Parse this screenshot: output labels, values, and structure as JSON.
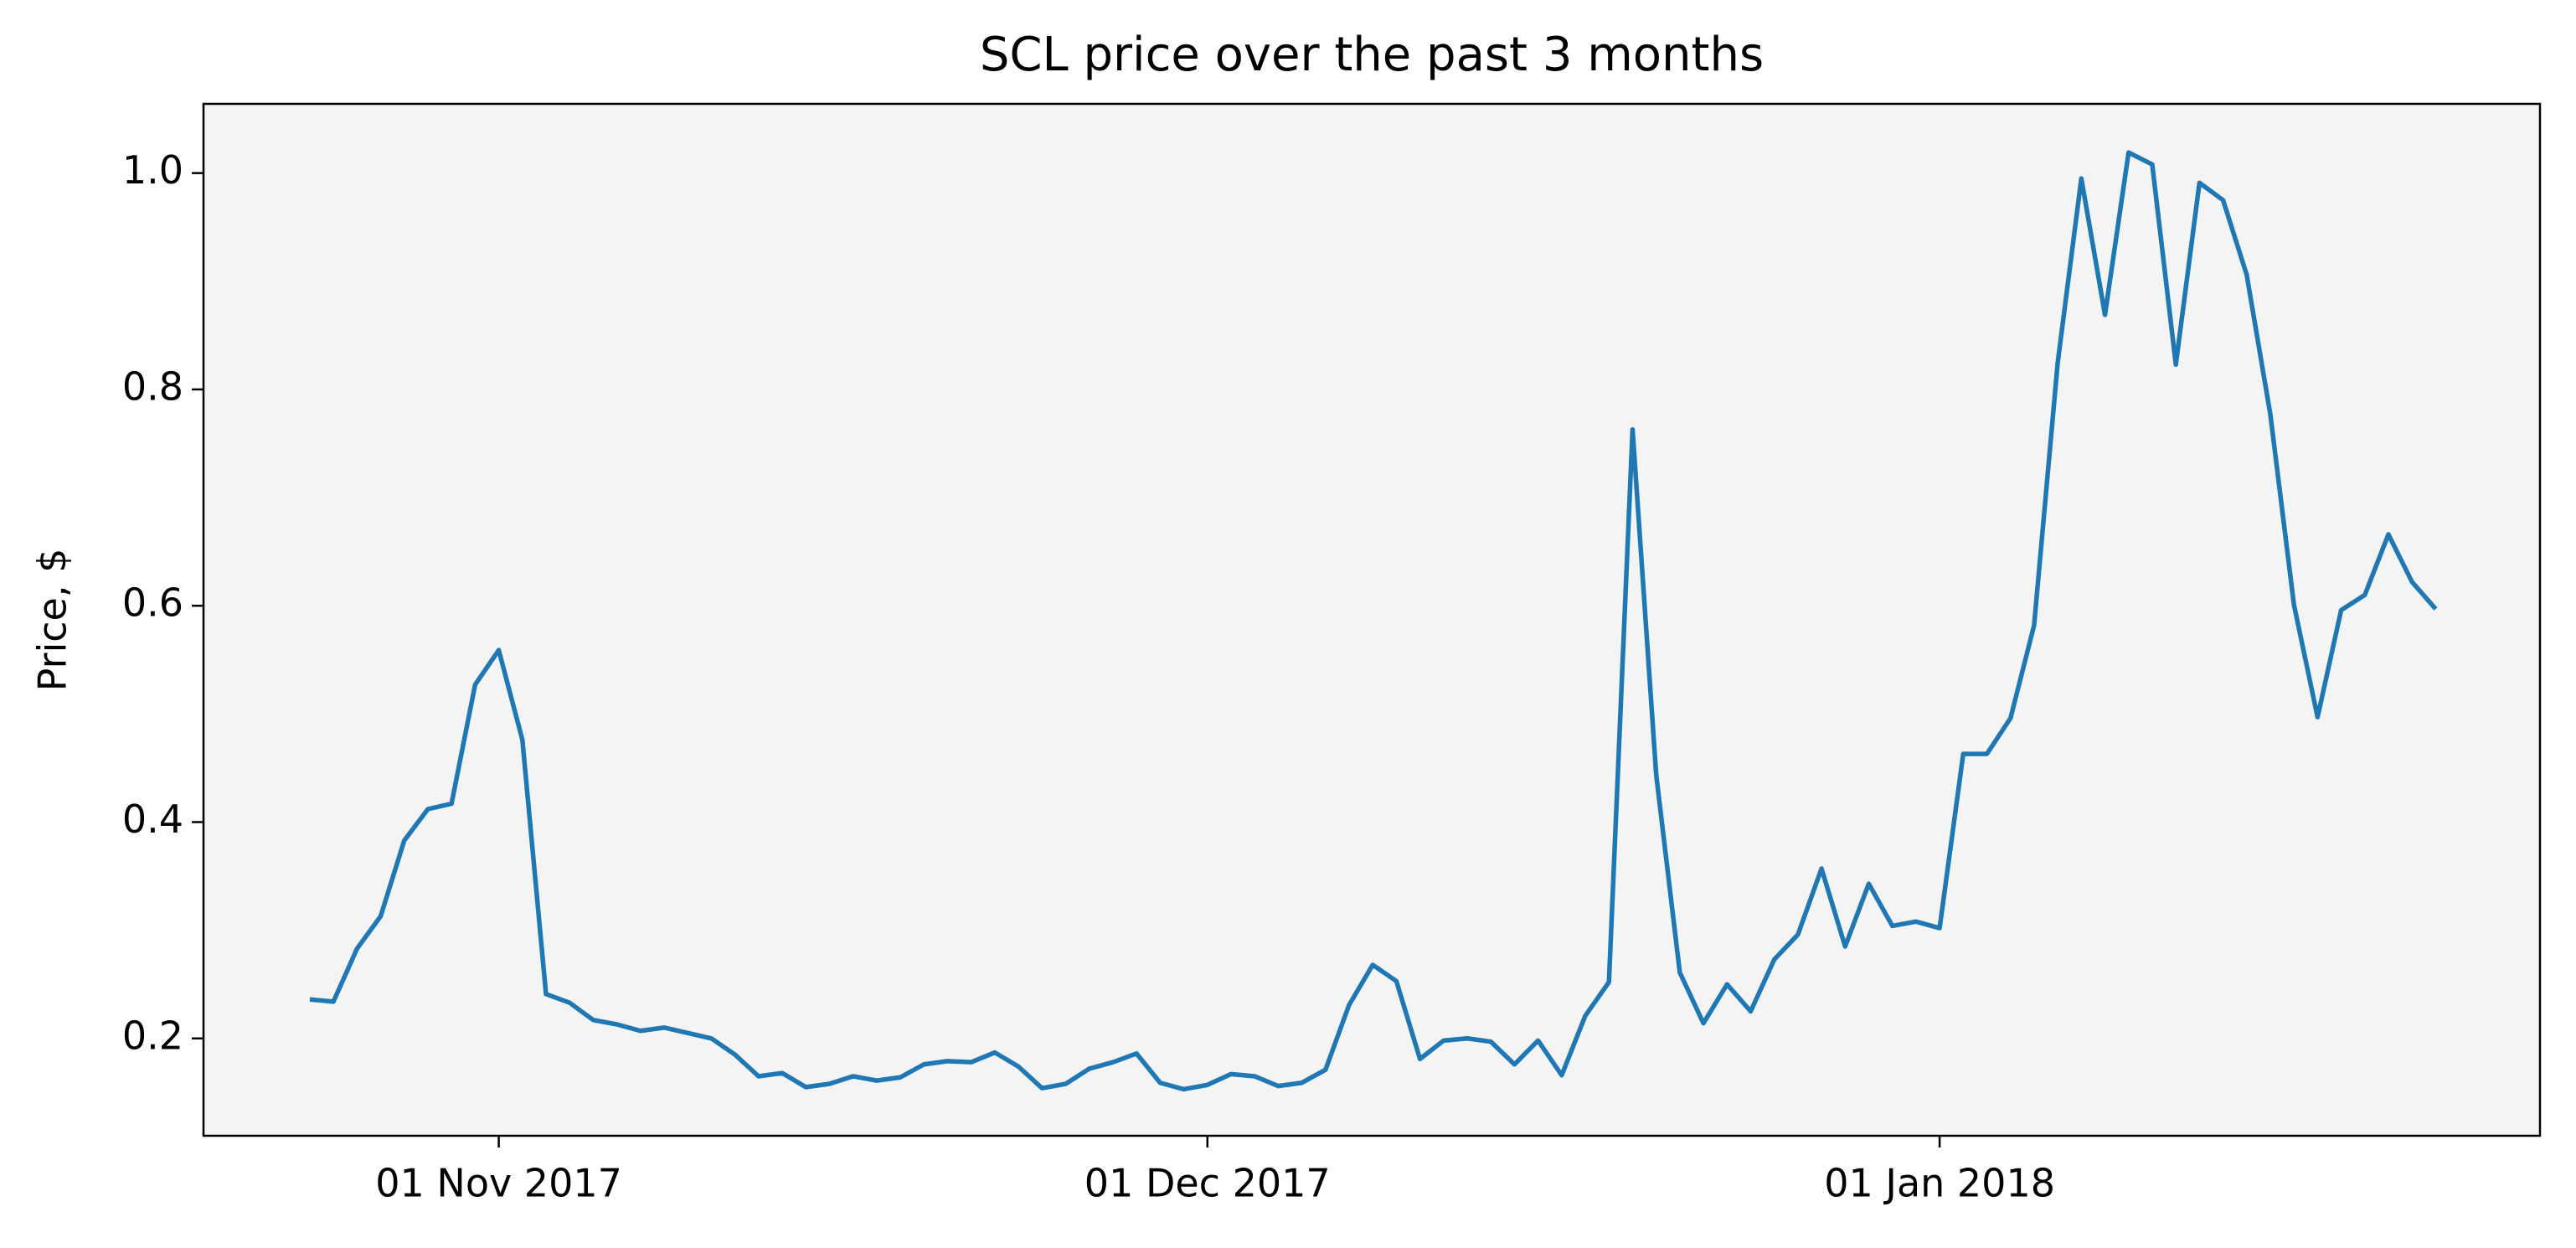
{
  "chart_data": {
    "type": "line",
    "title": "SCL price over the past 3 months",
    "y_label": "Price, $",
    "x": [
      "2017-10-24",
      "2017-10-25",
      "2017-10-26",
      "2017-10-27",
      "2017-10-28",
      "2017-10-29",
      "2017-10-30",
      "2017-10-31",
      "2017-11-01",
      "2017-11-02",
      "2017-11-03",
      "2017-11-04",
      "2017-11-05",
      "2017-11-06",
      "2017-11-07",
      "2017-11-08",
      "2017-11-09",
      "2017-11-10",
      "2017-11-11",
      "2017-11-12",
      "2017-11-13",
      "2017-11-14",
      "2017-11-15",
      "2017-11-16",
      "2017-11-17",
      "2017-11-18",
      "2017-11-19",
      "2017-11-20",
      "2017-11-21",
      "2017-11-22",
      "2017-11-23",
      "2017-11-24",
      "2017-11-25",
      "2017-11-26",
      "2017-11-27",
      "2017-11-28",
      "2017-11-29",
      "2017-11-30",
      "2017-12-01",
      "2017-12-02",
      "2017-12-03",
      "2017-12-04",
      "2017-12-05",
      "2017-12-06",
      "2017-12-07",
      "2017-12-08",
      "2017-12-09",
      "2017-12-10",
      "2017-12-11",
      "2017-12-12",
      "2017-12-13",
      "2017-12-14",
      "2017-12-15",
      "2017-12-16",
      "2017-12-17",
      "2017-12-18",
      "2017-12-19",
      "2017-12-20",
      "2017-12-21",
      "2017-12-22",
      "2017-12-23",
      "2017-12-24",
      "2017-12-25",
      "2017-12-26",
      "2017-12-27",
      "2017-12-28",
      "2017-12-29",
      "2017-12-30",
      "2017-12-31",
      "2018-01-01",
      "2018-01-02",
      "2018-01-03",
      "2018-01-04",
      "2018-01-05",
      "2018-01-06",
      "2018-01-07",
      "2018-01-08",
      "2018-01-09",
      "2018-01-10",
      "2018-01-11",
      "2018-01-12",
      "2018-01-13",
      "2018-01-14",
      "2018-01-15",
      "2018-01-16",
      "2018-01-17",
      "2018-01-18",
      "2018-01-19",
      "2018-01-20",
      "2018-01-21",
      "2018-01-22"
    ],
    "series": [
      {
        "color": "#1f77b4",
        "values": [
          0.236,
          0.234,
          0.283,
          0.313,
          0.383,
          0.412,
          0.417,
          0.527,
          0.559,
          0.476,
          0.241,
          0.233,
          0.217,
          0.213,
          0.207,
          0.21,
          0.205,
          0.2,
          0.185,
          0.165,
          0.168,
          0.155,
          0.158,
          0.165,
          0.161,
          0.164,
          0.176,
          0.179,
          0.178,
          0.187,
          0.174,
          0.154,
          0.158,
          0.172,
          0.178,
          0.186,
          0.159,
          0.153,
          0.157,
          0.167,
          0.165,
          0.156,
          0.159,
          0.171,
          0.231,
          0.268,
          0.253,
          0.181,
          0.198,
          0.2,
          0.197,
          0.176,
          0.198,
          0.166,
          0.221,
          0.252,
          0.763,
          0.444,
          0.261,
          0.214,
          0.25,
          0.225,
          0.273,
          0.296,
          0.357,
          0.285,
          0.343,
          0.304,
          0.308,
          0.302,
          0.463,
          0.463,
          0.496,
          0.582,
          0.825,
          0.995,
          0.869,
          1.019,
          1.008,
          0.823,
          0.991,
          0.975,
          0.906,
          0.777,
          0.601,
          0.497,
          0.596,
          0.61,
          0.666,
          0.622,
          0.597
        ]
      }
    ],
    "xlim": [
      "2017-10-19T12:00Z",
      "2018-01-26T10:00Z"
    ],
    "xticks": [
      {
        "value": "2017-11-01",
        "label": "01 Nov 2017"
      },
      {
        "value": "2017-12-01",
        "label": "01 Dec 2017"
      },
      {
        "value": "2018-01-01",
        "label": "01 Jan 2018"
      }
    ],
    "ylim": [
      0.11,
      1.064
    ],
    "yticks": [
      0.2,
      0.4,
      0.6,
      0.8,
      {
        "value": 1,
        "label": "1.0"
      }
    ],
    "background": "#f4f4f4"
  }
}
